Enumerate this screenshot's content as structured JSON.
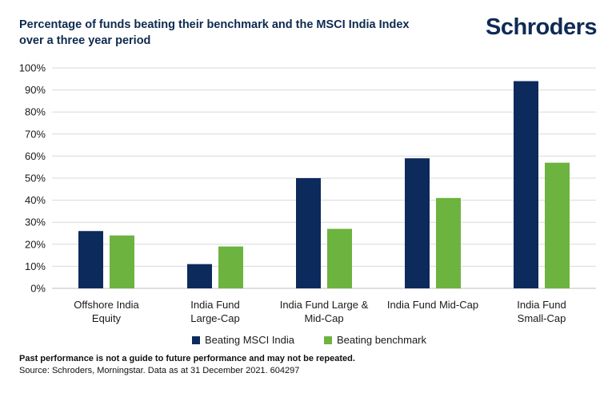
{
  "title_lines": [
    "Percentage of funds beating their benchmark and the MSCI India Index",
    "over a three year period"
  ],
  "logo_text": "Schroders",
  "colors": {
    "series1": "#0d2a5c",
    "series2": "#6db33f",
    "grid": "#d9d9d9",
    "title": "#0d2a4f"
  },
  "chart_data": {
    "type": "bar",
    "categories": [
      [
        "Offshore India",
        "Equity"
      ],
      [
        "India Fund",
        "Large-Cap"
      ],
      [
        "India Fund Large &",
        "Mid-Cap"
      ],
      [
        "India Fund Mid-Cap"
      ],
      [
        "India Fund",
        "Small-Cap"
      ]
    ],
    "series": [
      {
        "name": "Beating MSCI India",
        "values": [
          26,
          11,
          50,
          59,
          94
        ]
      },
      {
        "name": "Beating benchmark",
        "values": [
          24,
          19,
          27,
          41,
          57
        ]
      }
    ],
    "ylim": [
      0,
      100
    ],
    "yticks": [
      "0%",
      "10%",
      "20%",
      "30%",
      "40%",
      "50%",
      "60%",
      "70%",
      "80%",
      "90%",
      "100%"
    ],
    "grid": true,
    "legend": "bottom"
  },
  "footnote": {
    "bold": "Past performance is not a guide to future performance and may not be repeated.",
    "source": "Source: Schroders, Morningstar. Data as at 31 December 2021. 604297"
  }
}
